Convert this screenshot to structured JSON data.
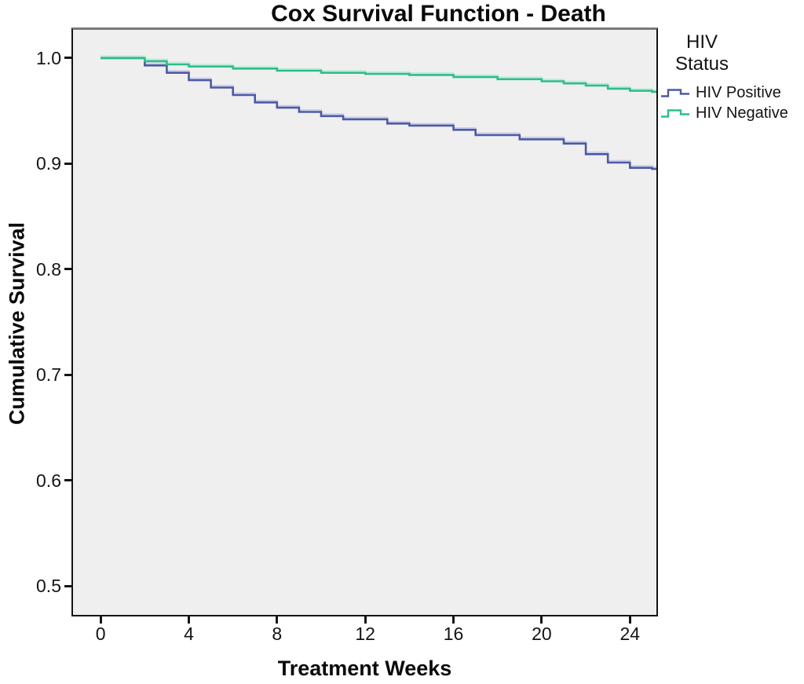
{
  "title": "Cox Survival Function - Death",
  "axes": {
    "x": {
      "label": "Treatment Weeks",
      "ticks": [
        "0",
        "4",
        "8",
        "12",
        "16",
        "20",
        "24"
      ]
    },
    "y": {
      "label": "Cumulative Survival",
      "ticks": [
        "0.5",
        "0.6",
        "0.7",
        "0.8",
        "0.9",
        "1.0"
      ]
    }
  },
  "legend": {
    "title_line1": "HIV",
    "title_line2": "Status",
    "items": [
      {
        "label": "HIV Positive",
        "color": "#4c5aa5",
        "halo": "#c9cde8"
      },
      {
        "label": "HIV Negative",
        "color": "#2fbe86",
        "halo": "#c2ebdd"
      }
    ]
  },
  "colors": {
    "plot_background": "#f0eff0",
    "frame": "#141414",
    "frame_top": "#7a7a7a",
    "hiv_positive_line": "#4c5aa5",
    "hiv_negative_line": "#2fbe86"
  },
  "chart_data": {
    "type": "line",
    "subtype": "step-survival-cox",
    "title": "Cox Survival Function - Death",
    "xlabel": "Treatment Weeks",
    "ylabel": "Cumulative Survival",
    "xlim": [
      -1.25,
      25.2
    ],
    "ylim": [
      0.4726,
      1.0267
    ],
    "xticks": [
      0,
      4,
      8,
      12,
      16,
      20,
      24
    ],
    "yticks": [
      0.5,
      0.6,
      0.7,
      0.8,
      0.9,
      1.0
    ],
    "grid": false,
    "legend_position": "right-top",
    "legend_title": "HIV Status",
    "x_end": 25.2,
    "series": [
      {
        "name": "HIV Positive",
        "color": "#4c5aa5",
        "halo": "#c9cde8",
        "points": [
          [
            0,
            1.0
          ],
          [
            2,
            0.993
          ],
          [
            3,
            0.986
          ],
          [
            4,
            0.979
          ],
          [
            5,
            0.972
          ],
          [
            6,
            0.965
          ],
          [
            7,
            0.958
          ],
          [
            8,
            0.953
          ],
          [
            9,
            0.949
          ],
          [
            10,
            0.945
          ],
          [
            11,
            0.942
          ],
          [
            13,
            0.938
          ],
          [
            14,
            0.936
          ],
          [
            16,
            0.932
          ],
          [
            17,
            0.927
          ],
          [
            19,
            0.923
          ],
          [
            21,
            0.919
          ],
          [
            22,
            0.909
          ],
          [
            23,
            0.901
          ],
          [
            24,
            0.896
          ],
          [
            25,
            0.895
          ]
        ]
      },
      {
        "name": "HIV Negative",
        "color": "#2fbe86",
        "halo": "#c2ebdd",
        "points": [
          [
            0,
            1.0
          ],
          [
            2,
            0.997
          ],
          [
            3,
            0.994
          ],
          [
            4,
            0.992
          ],
          [
            6,
            0.99
          ],
          [
            8,
            0.988
          ],
          [
            10,
            0.986
          ],
          [
            12,
            0.985
          ],
          [
            14,
            0.984
          ],
          [
            16,
            0.982
          ],
          [
            18,
            0.98
          ],
          [
            20,
            0.978
          ],
          [
            21,
            0.976
          ],
          [
            22,
            0.974
          ],
          [
            23,
            0.971
          ],
          [
            24,
            0.969
          ],
          [
            25,
            0.968
          ]
        ]
      }
    ]
  }
}
